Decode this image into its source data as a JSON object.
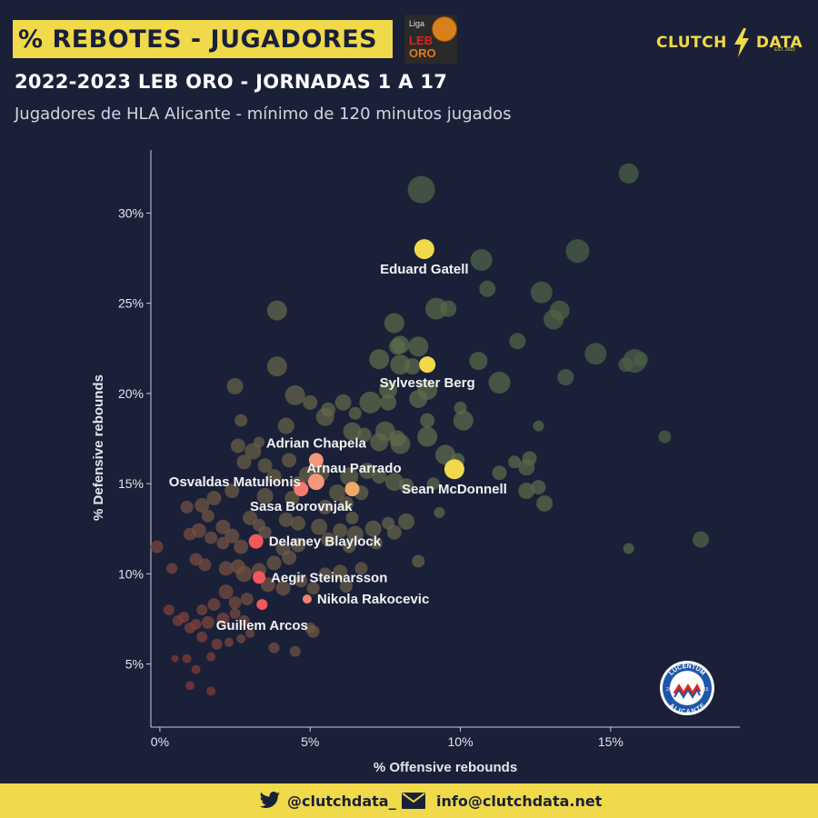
{
  "header": {
    "title": "% REBOTES - JUGADORES",
    "league_logo": {
      "small": "Liga",
      "line1": "LEB",
      "line2": "ORO"
    },
    "brand_left": "CLUTCH",
    "brand_right": "DATA",
    "brand_est": "EST. 2022",
    "subtitle": "2022-2023 LEB ORO - JORNADAS 1 A 17",
    "caption": "Jugadores de HLA Alicante - mínimo de 120 minutos jugados"
  },
  "footer": {
    "twitter_handle": "@clutchdata_",
    "email": "info@clutchdata.net",
    "icons": [
      "twitter-icon",
      "mail-icon"
    ]
  },
  "team_badge": {
    "text_top": "LUCENTUM",
    "text_bottom": "ALICANTE",
    "left": "20",
    "right": "15"
  },
  "colors": {
    "background": "#1a2038",
    "accent": "#f0d94a",
    "highlight_low": "#ff5a5a",
    "highlight_mid": "#f0a060",
    "highlight_high": "#f0d94a"
  },
  "chart_data": {
    "type": "scatter",
    "xlabel": "% Offensive rebounds",
    "ylabel": "% Defensive rebounds",
    "xlim": [
      -0.3,
      19.3
    ],
    "ylim": [
      1.5,
      33.5
    ],
    "xticks": [
      0,
      5,
      10,
      15
    ],
    "xtick_labels": [
      "0%",
      "5%",
      "10%",
      "15%"
    ],
    "yticks": [
      5,
      10,
      15,
      20,
      25,
      30
    ],
    "ytick_labels": [
      "5%",
      "10%",
      "15%",
      "20%",
      "25%",
      "30%"
    ],
    "highlighted": [
      {
        "name": "Eduard Gatell",
        "x": 8.8,
        "y": 28.0,
        "size": 11,
        "color": "#f0d94a",
        "label_pos": "below"
      },
      {
        "name": "Sylvester Berg",
        "x": 8.9,
        "y": 21.6,
        "size": 9,
        "color": "#f0d94a",
        "label_pos": "below"
      },
      {
        "name": "Adrian Chapela",
        "x": 5.2,
        "y": 16.3,
        "size": 8,
        "color": "#f3967a",
        "label_pos": "above"
      },
      {
        "name": "Osvaldas Matulionis",
        "x": 5.2,
        "y": 15.1,
        "size": 9,
        "color": "#f3967a",
        "label_pos": "left"
      },
      {
        "name": "Arnau Parrado",
        "x": 6.4,
        "y": 14.7,
        "size": 8,
        "color": "#f0a868",
        "label_pos": "above-right"
      },
      {
        "name": "Sean McDonnell",
        "x": 9.8,
        "y": 15.8,
        "size": 11,
        "color": "#f0d94a",
        "label_pos": "below"
      },
      {
        "name": "Sasa Borovnjak",
        "x": 4.7,
        "y": 14.7,
        "size": 8,
        "color": "#f47a6f",
        "label_pos": "below"
      },
      {
        "name": "Delaney Blaylock",
        "x": 3.2,
        "y": 11.8,
        "size": 8,
        "color": "#f25858",
        "label_pos": "right"
      },
      {
        "name": "Aegir Steinarsson",
        "x": 3.3,
        "y": 9.8,
        "size": 7,
        "color": "#f25858",
        "label_pos": "right"
      },
      {
        "name": "Nikola Rakocevic",
        "x": 4.9,
        "y": 8.6,
        "size": 5,
        "color": "#f08070",
        "label_pos": "right"
      },
      {
        "name": "Guillem Arcos",
        "x": 3.4,
        "y": 8.3,
        "size": 6,
        "color": "#f25858",
        "label_pos": "below-left"
      }
    ],
    "others": [
      [
        15.6,
        32.2,
        11
      ],
      [
        8.7,
        31.3,
        15
      ],
      [
        13.9,
        27.9,
        13
      ],
      [
        10.7,
        27.4,
        12
      ],
      [
        9.2,
        24.7,
        12
      ],
      [
        9.6,
        24.7,
        9
      ],
      [
        12.7,
        25.6,
        12
      ],
      [
        13.3,
        24.6,
        11
      ],
      [
        13.1,
        24.1,
        11
      ],
      [
        10.9,
        25.8,
        9
      ],
      [
        7.8,
        23.9,
        11
      ],
      [
        7.9,
        22.6,
        9
      ],
      [
        8.0,
        22.7,
        10
      ],
      [
        8.6,
        22.6,
        11
      ],
      [
        7.3,
        21.9,
        11
      ],
      [
        8.0,
        21.6,
        11
      ],
      [
        8.4,
        21.5,
        9
      ],
      [
        10.6,
        21.8,
        10
      ],
      [
        11.9,
        22.9,
        9
      ],
      [
        14.5,
        22.2,
        12
      ],
      [
        15.5,
        21.6,
        8
      ],
      [
        15.8,
        21.8,
        13
      ],
      [
        16.0,
        21.9,
        8
      ],
      [
        13.5,
        20.9,
        9
      ],
      [
        11.3,
        20.6,
        12
      ],
      [
        7.6,
        20.2,
        10
      ],
      [
        8.9,
        20.2,
        11
      ],
      [
        10.0,
        19.2,
        7
      ],
      [
        10.1,
        18.5,
        11
      ],
      [
        8.9,
        18.5,
        8
      ],
      [
        8.6,
        19.7,
        10
      ],
      [
        7.0,
        19.5,
        12
      ],
      [
        7.6,
        19.5,
        9
      ],
      [
        6.1,
        19.5,
        9
      ],
      [
        5.6,
        19.1,
        8
      ],
      [
        6.5,
        18.9,
        7
      ],
      [
        6.4,
        17.9,
        10
      ],
      [
        6.8,
        17.7,
        8
      ],
      [
        7.5,
        17.9,
        11
      ],
      [
        7.3,
        17.3,
        10
      ],
      [
        7.9,
        17.5,
        9
      ],
      [
        8.0,
        17.2,
        11
      ],
      [
        8.9,
        17.6,
        11
      ],
      [
        9.5,
        16.6,
        11
      ],
      [
        9.9,
        16.3,
        8
      ],
      [
        12.6,
        18.2,
        6
      ],
      [
        16.8,
        17.6,
        7
      ],
      [
        12.3,
        16.4,
        8
      ],
      [
        12.2,
        15.9,
        9
      ],
      [
        11.8,
        16.2,
        7
      ],
      [
        11.3,
        15.6,
        8
      ],
      [
        12.2,
        14.6,
        9
      ],
      [
        12.6,
        14.8,
        8
      ],
      [
        12.8,
        13.9,
        9
      ],
      [
        7.8,
        15.1,
        10
      ],
      [
        8.2,
        14.9,
        8
      ],
      [
        7.3,
        15.4,
        8
      ],
      [
        6.9,
        15.7,
        9
      ],
      [
        6.3,
        15.4,
        10
      ],
      [
        6.7,
        14.5,
        8
      ],
      [
        6.2,
        13.9,
        8
      ],
      [
        5.9,
        14.5,
        9
      ],
      [
        5.5,
        13.7,
        8
      ],
      [
        5.3,
        15.6,
        11
      ],
      [
        4.2,
        18.2,
        9
      ],
      [
        4.5,
        19.9,
        11
      ],
      [
        5.0,
        19.5,
        8
      ],
      [
        5.5,
        18.7,
        10
      ],
      [
        3.9,
        21.5,
        11
      ],
      [
        3.9,
        24.6,
        11
      ],
      [
        2.5,
        20.4,
        9
      ],
      [
        2.7,
        18.5,
        7
      ],
      [
        2.6,
        17.1,
        8
      ],
      [
        3.3,
        17.3,
        6
      ],
      [
        3.1,
        16.8,
        9
      ],
      [
        2.8,
        16.2,
        8
      ],
      [
        3.5,
        16.0,
        8
      ],
      [
        4.3,
        16.3,
        8
      ],
      [
        3.8,
        15.4,
        8
      ],
      [
        4.6,
        15.0,
        8
      ],
      [
        4.9,
        15.5,
        9
      ],
      [
        4.4,
        14.2,
        8
      ],
      [
        3.5,
        14.3,
        9
      ],
      [
        3.0,
        13.1,
        8
      ],
      [
        2.4,
        14.6,
        8
      ],
      [
        1.8,
        14.2,
        8
      ],
      [
        1.4,
        13.8,
        8
      ],
      [
        0.9,
        13.7,
        7
      ],
      [
        1.6,
        13.2,
        7
      ],
      [
        2.1,
        12.6,
        8
      ],
      [
        3.3,
        12.7,
        7
      ],
      [
        3.5,
        12.3,
        7
      ],
      [
        4.2,
        13.0,
        8
      ],
      [
        4.6,
        12.8,
        8
      ],
      [
        5.3,
        12.6,
        9
      ],
      [
        6.0,
        12.4,
        8
      ],
      [
        6.5,
        12.2,
        9
      ],
      [
        7.1,
        12.5,
        9
      ],
      [
        7.6,
        12.8,
        7
      ],
      [
        7.8,
        12.3,
        8
      ],
      [
        7.2,
        11.7,
        7
      ],
      [
        6.3,
        11.5,
        7
      ],
      [
        5.6,
        11.9,
        8
      ],
      [
        4.6,
        11.6,
        8
      ],
      [
        4.1,
        11.4,
        8
      ],
      [
        4.3,
        10.9,
        8
      ],
      [
        3.8,
        10.6,
        8
      ],
      [
        3.3,
        10.2,
        8
      ],
      [
        2.7,
        11.5,
        8
      ],
      [
        2.4,
        12.1,
        8
      ],
      [
        2.1,
        11.7,
        7
      ],
      [
        1.7,
        12.0,
        7
      ],
      [
        1.3,
        12.4,
        8
      ],
      [
        1.0,
        12.2,
        7
      ],
      [
        -0.1,
        11.5,
        7
      ],
      [
        1.2,
        10.8,
        7
      ],
      [
        1.5,
        10.5,
        7
      ],
      [
        2.2,
        10.3,
        8
      ],
      [
        2.6,
        10.4,
        8
      ],
      [
        2.8,
        10.0,
        9
      ],
      [
        3.6,
        9.4,
        8
      ],
      [
        4.1,
        9.2,
        8
      ],
      [
        4.7,
        9.6,
        7
      ],
      [
        5.1,
        9.2,
        7
      ],
      [
        5.5,
        10.0,
        7
      ],
      [
        6.0,
        10.1,
        8
      ],
      [
        6.7,
        10.3,
        7
      ],
      [
        6.2,
        9.3,
        7
      ],
      [
        0.4,
        10.3,
        6
      ],
      [
        2.9,
        8.6,
        7
      ],
      [
        2.5,
        8.4,
        7
      ],
      [
        2.2,
        9.0,
        8
      ],
      [
        1.8,
        8.3,
        7
      ],
      [
        1.4,
        8.0,
        6
      ],
      [
        1.2,
        7.2,
        6
      ],
      [
        1.0,
        7.0,
        6
      ],
      [
        0.8,
        7.6,
        6
      ],
      [
        0.3,
        8.0,
        6
      ],
      [
        0.6,
        7.4,
        6
      ],
      [
        1.6,
        7.3,
        7
      ],
      [
        2.1,
        7.5,
        7
      ],
      [
        2.5,
        7.8,
        6
      ],
      [
        2.8,
        7.4,
        6
      ],
      [
        1.4,
        6.5,
        6
      ],
      [
        1.9,
        6.1,
        6
      ],
      [
        1.7,
        5.4,
        5
      ],
      [
        2.3,
        6.2,
        5
      ],
      [
        2.7,
        6.4,
        5
      ],
      [
        3.0,
        6.7,
        5
      ],
      [
        3.8,
        5.9,
        6
      ],
      [
        4.5,
        5.7,
        6
      ],
      [
        5.1,
        6.8,
        7
      ],
      [
        0.9,
        5.3,
        5
      ],
      [
        1.2,
        4.7,
        5
      ],
      [
        1.0,
        3.8,
        5
      ],
      [
        1.7,
        3.5,
        5
      ],
      [
        0.5,
        5.3,
        4
      ],
      [
        5.0,
        7.0,
        6
      ],
      [
        8.2,
        12.9,
        9
      ],
      [
        8.6,
        10.7,
        7
      ],
      [
        9.1,
        15.0,
        7
      ],
      [
        15.6,
        11.4,
        6
      ],
      [
        18.0,
        11.9,
        9
      ],
      [
        9.3,
        13.4,
        6
      ],
      [
        6.4,
        13.1,
        7
      ]
    ]
  }
}
